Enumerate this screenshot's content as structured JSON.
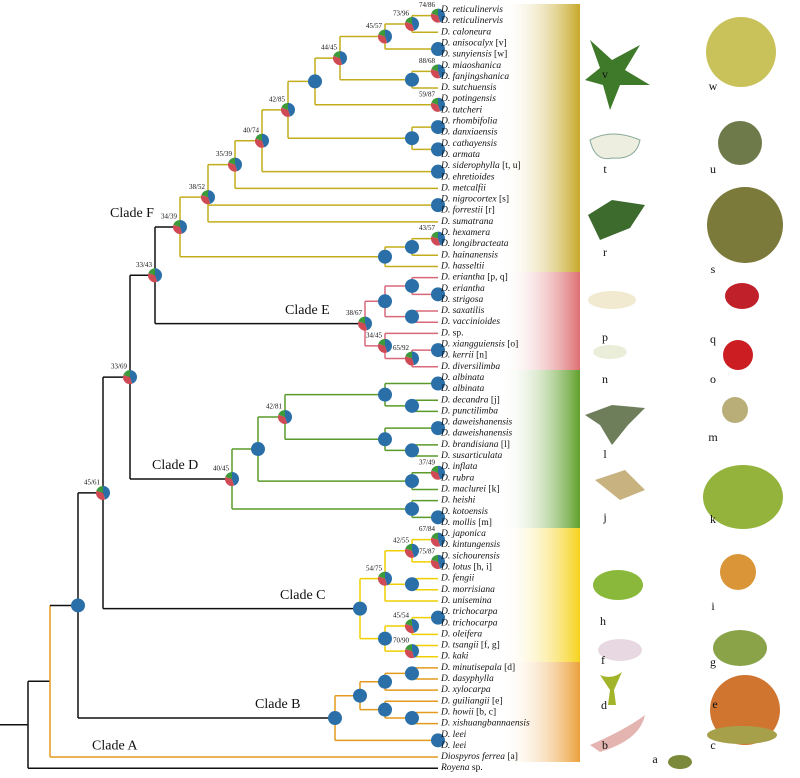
{
  "leaves": [
    {
      "name": "D. reticulinervis"
    },
    {
      "name": "D. reticulinervis"
    },
    {
      "name": "D. caloneura"
    },
    {
      "name": "D. anisocalyx",
      "tag": "[v]"
    },
    {
      "name": "D. sunyiensis",
      "tag": "[w]"
    },
    {
      "name": "D. miaoshanica"
    },
    {
      "name": "D. fanjingshanica"
    },
    {
      "name": "D. sutchuensis"
    },
    {
      "name": "D. potingensis"
    },
    {
      "name": "D. tutcheri"
    },
    {
      "name": "D. rhombifolia"
    },
    {
      "name": "D. danxiaensis"
    },
    {
      "name": "D. cathayensis"
    },
    {
      "name": "D. armata"
    },
    {
      "name": "D. siderophylla",
      "tag": "[t, u]"
    },
    {
      "name": "D. ehretioides"
    },
    {
      "name": "D. metcalfii"
    },
    {
      "name": "D. nigrocortex",
      "tag": "[s]"
    },
    {
      "name": "D. forrestii",
      "tag": "[r]"
    },
    {
      "name": "D. sumatrana"
    },
    {
      "name": "D. hexamera"
    },
    {
      "name": "D. longibracteata"
    },
    {
      "name": "D. hainanensis"
    },
    {
      "name": "D. hasseltii"
    },
    {
      "name": "D. eriantha",
      "tag": "[p, q]"
    },
    {
      "name": "D. eriantha"
    },
    {
      "name": "D. strigosa"
    },
    {
      "name": "D. saxatilis"
    },
    {
      "name": "D. vaccinioides"
    },
    {
      "name": "D.",
      "tag": "sp."
    },
    {
      "name": "D. xiangguiensis",
      "tag": "[o]"
    },
    {
      "name": "D. kerrii",
      "tag": "[n]"
    },
    {
      "name": "D. diversilimba"
    },
    {
      "name": "D. albinata"
    },
    {
      "name": "D. albinata"
    },
    {
      "name": "D. decandra",
      "tag": "[j]"
    },
    {
      "name": "D. punctilimba"
    },
    {
      "name": "D. daweishanensis"
    },
    {
      "name": "D. daweishanensis"
    },
    {
      "name": "D. brandisiana",
      "tag": "[l]"
    },
    {
      "name": "D. susarticulata"
    },
    {
      "name": "D. inflata"
    },
    {
      "name": "D. rubra"
    },
    {
      "name": "D. maclurei",
      "tag": "[k]"
    },
    {
      "name": "D. heishi"
    },
    {
      "name": "D. kotoensis"
    },
    {
      "name": "D. mollis",
      "tag": "[m]"
    },
    {
      "name": "D. japonica"
    },
    {
      "name": "D. kintungensis"
    },
    {
      "name": "D. sichourensis"
    },
    {
      "name": "D. lotus",
      "tag": "[h, i]"
    },
    {
      "name": "D. fengii"
    },
    {
      "name": "D. morrisiana"
    },
    {
      "name": "D. unisemina"
    },
    {
      "name": "D. trichocarpa"
    },
    {
      "name": "D. trichocarpa"
    },
    {
      "name": "D. oleifera"
    },
    {
      "name": "D. tsangii",
      "tag": "[f, g]"
    },
    {
      "name": "D. kaki"
    },
    {
      "name": "D. minutisepala",
      "tag": "[d]"
    },
    {
      "name": "D. dasyphylla"
    },
    {
      "name": "D. xylocarpa"
    },
    {
      "name": "D. guiliangii",
      "tag": "[e]"
    },
    {
      "name": "D. howii",
      "tag": "[b, c]"
    },
    {
      "name": "D. xishuangbannaensis"
    },
    {
      "name": "D. leei"
    },
    {
      "name": "D. leei"
    },
    {
      "name": "Diospyros ferrea",
      "tag": "[a]"
    },
    {
      "name": "Royena",
      "tag": "sp."
    }
  ],
  "supports": [
    "74/86",
    "73/96",
    "45/57",
    "88/68",
    "44/45",
    "59/87",
    "42/85",
    "40/74",
    "35/39",
    "38/52",
    "34/39",
    "43/57",
    "33/43",
    "38/67",
    "65/92",
    "34/45",
    "33/69",
    "42/81",
    "37/49",
    "40/45",
    "45/61",
    "67/84",
    "42/55",
    "75/87",
    "54/75",
    "45/54",
    "70/90"
  ],
  "clades": [
    "Clade F",
    "Clade E",
    "Clade D",
    "Clade C",
    "Clade B",
    "Clade A"
  ],
  "photo_labels": [
    "v",
    "w",
    "t",
    "u",
    "r",
    "s",
    "p",
    "q",
    "n",
    "o",
    "l",
    "m",
    "j",
    "k",
    "h",
    "i",
    "f",
    "g",
    "d",
    "e",
    "b",
    "c",
    "a"
  ]
}
